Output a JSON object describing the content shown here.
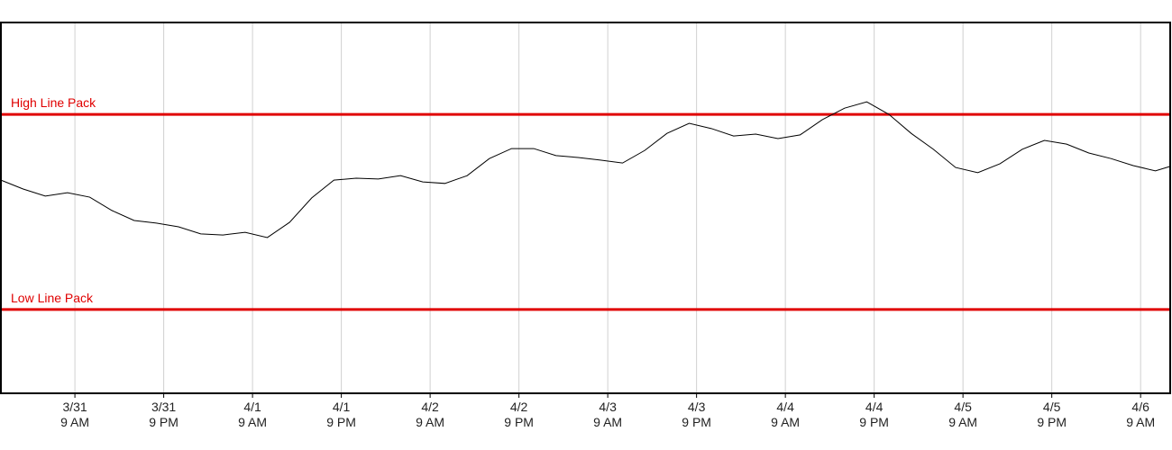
{
  "chart_data": {
    "type": "line",
    "xlim": [
      "3/30 11 PM",
      "4/6 1 PM"
    ],
    "xticks": [
      "3/31 9 AM",
      "3/31 9 PM",
      "4/1 9 AM",
      "4/1 9 PM",
      "4/2 9 AM",
      "4/2 9 PM",
      "4/3 9 AM",
      "4/3 9 PM",
      "4/4 9 AM",
      "4/4 9 PM",
      "4/5 9 AM",
      "4/5 9 PM",
      "4/6 9 AM"
    ],
    "ylim": [
      0,
      100
    ],
    "grid": true,
    "x": [
      "3/30 11 PM",
      "3/31 2 AM",
      "3/31 5 AM",
      "3/31 8 AM",
      "3/31 11 AM",
      "3/31 2 PM",
      "3/31 5 PM",
      "3/31 8 PM",
      "3/31 11 PM",
      "4/1 2 AM",
      "4/1 5 AM",
      "4/1 8 AM",
      "4/1 11 AM",
      "4/1 2 PM",
      "4/1 5 PM",
      "4/1 8 PM",
      "4/1 11 PM",
      "4/2 2 AM",
      "4/2 5 AM",
      "4/2 8 AM",
      "4/2 11 AM",
      "4/2 2 PM",
      "4/2 5 PM",
      "4/2 8 PM",
      "4/2 11 PM",
      "4/3 2 AM",
      "4/3 5 AM",
      "4/3 8 AM",
      "4/3 11 AM",
      "4/3 2 PM",
      "4/3 5 PM",
      "4/3 8 PM",
      "4/3 11 PM",
      "4/4 2 AM",
      "4/4 5 AM",
      "4/4 8 AM",
      "4/4 11 AM",
      "4/4 2 PM",
      "4/4 5 PM",
      "4/4 8 PM",
      "4/4 11 PM",
      "4/5 2 AM",
      "4/5 5 AM",
      "4/5 8 AM",
      "4/5 11 AM",
      "4/5 2 PM",
      "4/5 5 PM",
      "4/5 8 PM",
      "4/5 11 PM",
      "4/6 2 AM",
      "4/6 5 AM",
      "4/6 8 AM",
      "4/6 11 AM",
      "4/6 1 PM"
    ],
    "series": [
      {
        "color": "#000000",
        "values": [
          57.5,
          55.1,
          53.2,
          54.1,
          52.9,
          49.3,
          46.6,
          45.9,
          44.9,
          43.0,
          42.7,
          43.4,
          42.0,
          46.1,
          52.7,
          57.5,
          58.0,
          57.8,
          58.7,
          57.0,
          56.6,
          58.7,
          63.3,
          66.0,
          66.0,
          64.1,
          63.6,
          62.9,
          62.1,
          65.5,
          70.1,
          72.8,
          71.4,
          69.4,
          69.9,
          68.7,
          69.7,
          73.8,
          76.9,
          78.6,
          75.2,
          70.1,
          65.8,
          60.9,
          59.5,
          61.9,
          65.8,
          68.2,
          67.2,
          64.8,
          63.3,
          61.4,
          60.0,
          61.2
        ]
      }
    ],
    "reference_lines": [
      {
        "label": "High Line Pack",
        "value": 75.2,
        "color": "#e00000"
      },
      {
        "label": "Low Line Pack",
        "value": 22.6,
        "color": "#e00000"
      }
    ]
  }
}
